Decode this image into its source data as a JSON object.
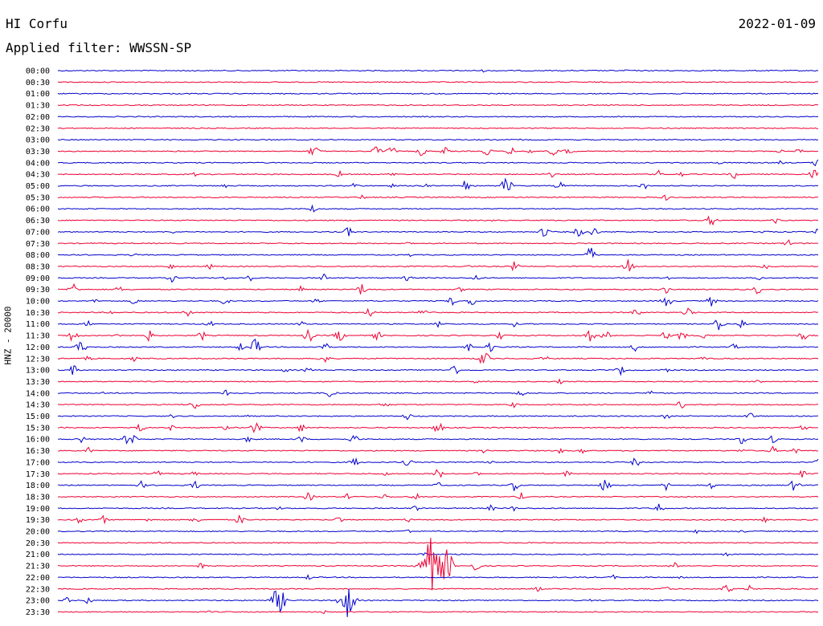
{
  "header": {
    "station": "HI Corfu",
    "date": "2022-01-09",
    "filter_label": "Applied filter: WWSSN-SP"
  },
  "chart_data": {
    "type": "line",
    "subtype": "helicorder",
    "title": "HI Corfu",
    "ylabel": "HNZ - 20000",
    "colors": {
      "even": "#0000cc",
      "odd": "#ee0033"
    },
    "rows": [
      {
        "time": "00:00",
        "events": [
          [
            0.17,
            0.2
          ],
          [
            0.36,
            0.15
          ],
          [
            0.56,
            0.2
          ],
          [
            0.75,
            0.25
          ]
        ]
      },
      {
        "time": "00:30",
        "events": [
          [
            0.36,
            0.1
          ]
        ]
      },
      {
        "time": "01:00",
        "events": [
          [
            0.5,
            0.1
          ]
        ]
      },
      {
        "time": "01:30",
        "events": []
      },
      {
        "time": "02:00",
        "events": []
      },
      {
        "time": "02:30",
        "events": []
      },
      {
        "time": "03:00",
        "events": [
          [
            0.28,
            0.15
          ],
          [
            0.61,
            0.15
          ]
        ]
      },
      {
        "time": "03:30",
        "events": [
          [
            0.337,
            0.9
          ],
          [
            0.419,
            0.8
          ],
          [
            0.438,
            0.8
          ],
          [
            0.478,
            0.7
          ],
          [
            0.509,
            0.6
          ],
          [
            0.565,
            0.7
          ],
          [
            0.596,
            0.6
          ],
          [
            0.62,
            0.5
          ],
          [
            0.65,
            0.8
          ],
          [
            0.67,
            0.7
          ],
          [
            0.95,
            0.3
          ],
          [
            0.975,
            0.4
          ]
        ]
      },
      {
        "time": "04:00",
        "events": [
          [
            0.87,
            0.3
          ],
          [
            0.95,
            0.3
          ],
          [
            1.0,
            0.8
          ]
        ]
      },
      {
        "time": "04:30",
        "events": [
          [
            0.18,
            0.3
          ],
          [
            0.37,
            0.5
          ],
          [
            0.44,
            0.4
          ],
          [
            0.65,
            0.4
          ],
          [
            0.79,
            0.6
          ],
          [
            0.82,
            0.4
          ],
          [
            0.89,
            0.7
          ],
          [
            0.995,
            0.9
          ]
        ]
      },
      {
        "time": "05:00",
        "events": [
          [
            0.22,
            0.4
          ],
          [
            0.39,
            0.5
          ],
          [
            0.44,
            0.3
          ],
          [
            0.485,
            0.7
          ],
          [
            0.536,
            0.8
          ],
          [
            0.59,
            1.2
          ],
          [
            0.66,
            0.7
          ],
          [
            0.77,
            0.6
          ]
        ]
      },
      {
        "time": "05:30",
        "events": [
          [
            0.4,
            0.4
          ],
          [
            0.8,
            0.5
          ]
        ]
      },
      {
        "time": "06:00",
        "events": [
          [
            0.337,
            0.7
          ]
        ]
      },
      {
        "time": "06:30",
        "events": [
          [
            0.57,
            0.2
          ],
          [
            0.86,
            0.9
          ],
          [
            0.945,
            0.5
          ]
        ]
      },
      {
        "time": "07:00",
        "events": [
          [
            0.15,
            0.3
          ],
          [
            0.383,
            0.8
          ],
          [
            0.64,
            0.9
          ],
          [
            0.685,
            0.8
          ],
          [
            0.705,
            0.8
          ],
          [
            0.93,
            0.6
          ],
          [
            1.0,
            0.6
          ]
        ]
      },
      {
        "time": "07:30",
        "events": [
          [
            0.46,
            0.3
          ],
          [
            0.96,
            0.6
          ]
        ]
      },
      {
        "time": "08:00",
        "events": [
          [
            0.1,
            0.3
          ],
          [
            0.46,
            0.4
          ],
          [
            0.7,
            1.2
          ]
        ]
      },
      {
        "time": "08:30",
        "events": [
          [
            0.15,
            0.5
          ],
          [
            0.2,
            0.4
          ],
          [
            0.54,
            0.3
          ],
          [
            0.6,
            0.7
          ],
          [
            0.75,
            1.0
          ],
          [
            0.93,
            0.6
          ]
        ]
      },
      {
        "time": "09:00",
        "events": [
          [
            0.15,
            0.6
          ],
          [
            0.22,
            0.3
          ],
          [
            0.25,
            0.7
          ],
          [
            0.35,
            0.6
          ],
          [
            0.46,
            0.5
          ],
          [
            0.55,
            0.5
          ],
          [
            0.8,
            0.5
          ],
          [
            0.92,
            0.5
          ]
        ]
      },
      {
        "time": "09:30",
        "events": [
          [
            0.02,
            1.0
          ],
          [
            0.08,
            0.5
          ],
          [
            0.32,
            0.5
          ],
          [
            0.4,
            0.9
          ],
          [
            0.53,
            0.4
          ],
          [
            0.8,
            0.6
          ],
          [
            0.92,
            0.7
          ]
        ]
      },
      {
        "time": "10:00",
        "events": [
          [
            0.05,
            0.3
          ],
          [
            0.1,
            0.6
          ],
          [
            0.22,
            0.6
          ],
          [
            0.34,
            0.5
          ],
          [
            0.52,
            0.8
          ],
          [
            0.545,
            0.8
          ],
          [
            0.8,
            1.0
          ],
          [
            0.86,
            0.8
          ]
        ]
      },
      {
        "time": "10:30",
        "events": [
          [
            0.07,
            0.3
          ],
          [
            0.17,
            0.8
          ],
          [
            0.41,
            0.7
          ],
          [
            0.48,
            0.8
          ],
          [
            0.76,
            0.7
          ],
          [
            0.83,
            0.9
          ]
        ]
      },
      {
        "time": "11:00",
        "events": [
          [
            0.04,
            0.5
          ],
          [
            0.2,
            0.5
          ],
          [
            0.32,
            0.5
          ],
          [
            0.5,
            0.6
          ],
          [
            0.6,
            0.4
          ],
          [
            0.87,
            1.0
          ],
          [
            0.9,
            0.8
          ]
        ]
      },
      {
        "time": "11:30",
        "events": [
          [
            0.02,
            1.0
          ],
          [
            0.08,
            0.7
          ],
          [
            0.12,
            0.8
          ],
          [
            0.19,
            0.7
          ],
          [
            0.33,
            1.0
          ],
          [
            0.37,
            1.0
          ],
          [
            0.42,
            0.7
          ],
          [
            0.58,
            0.9
          ],
          [
            0.7,
            0.9
          ],
          [
            0.72,
            0.8
          ],
          [
            0.8,
            0.7
          ],
          [
            0.82,
            0.8
          ],
          [
            0.85,
            0.6
          ],
          [
            0.98,
            0.7
          ]
        ]
      },
      {
        "time": "12:00",
        "events": [
          [
            0.03,
            1.0
          ],
          [
            0.24,
            0.6
          ],
          [
            0.26,
            1.2
          ],
          [
            0.35,
            0.8
          ],
          [
            0.54,
            0.6
          ],
          [
            0.57,
            0.8
          ],
          [
            0.76,
            0.7
          ],
          [
            0.89,
            0.5
          ]
        ]
      },
      {
        "time": "12:30",
        "events": [
          [
            0.04,
            0.4
          ],
          [
            0.1,
            0.4
          ],
          [
            0.35,
            0.9
          ],
          [
            0.56,
            1.2
          ],
          [
            0.64,
            0.5
          ],
          [
            0.85,
            0.4
          ]
        ]
      },
      {
        "time": "13:00",
        "events": [
          [
            0.02,
            0.8
          ],
          [
            0.3,
            0.4
          ],
          [
            0.33,
            0.5
          ],
          [
            0.52,
            1.0
          ],
          [
            0.74,
            0.7
          ],
          [
            0.8,
            0.4
          ]
        ]
      },
      {
        "time": "13:30",
        "events": [
          [
            0.55,
            0.3
          ],
          [
            0.66,
            0.4
          ],
          [
            0.92,
            0.4
          ]
        ]
      },
      {
        "time": "14:00",
        "events": [
          [
            0.06,
            0.3
          ],
          [
            0.22,
            0.5
          ],
          [
            0.36,
            0.9
          ],
          [
            0.61,
            0.6
          ],
          [
            0.78,
            0.5
          ]
        ]
      },
      {
        "time": "14:30",
        "events": [
          [
            0.18,
            0.8
          ],
          [
            0.43,
            0.6
          ],
          [
            0.6,
            0.4
          ],
          [
            0.82,
            0.6
          ]
        ]
      },
      {
        "time": "15:00",
        "events": [
          [
            0.15,
            0.3
          ],
          [
            0.25,
            0.3
          ],
          [
            0.46,
            0.6
          ],
          [
            0.8,
            0.5
          ],
          [
            0.91,
            0.6
          ]
        ]
      },
      {
        "time": "15:30",
        "events": [
          [
            0.11,
            0.8
          ],
          [
            0.15,
            0.5
          ],
          [
            0.22,
            0.4
          ],
          [
            0.26,
            0.9
          ],
          [
            0.32,
            0.7
          ],
          [
            0.5,
            0.9
          ],
          [
            0.98,
            0.5
          ]
        ]
      },
      {
        "time": "16:00",
        "events": [
          [
            0.03,
            0.6
          ],
          [
            0.09,
            0.7
          ],
          [
            0.1,
            0.6
          ],
          [
            0.25,
            0.5
          ],
          [
            0.32,
            0.6
          ],
          [
            0.39,
            0.8
          ],
          [
            0.9,
            0.9
          ],
          [
            0.94,
            0.6
          ]
        ]
      },
      {
        "time": "16:30",
        "events": [
          [
            0.04,
            0.5
          ],
          [
            0.56,
            0.4
          ],
          [
            0.66,
            0.5
          ],
          [
            0.69,
            0.5
          ],
          [
            0.9,
            0.4
          ],
          [
            0.94,
            0.6
          ],
          [
            0.97,
            0.6
          ]
        ]
      },
      {
        "time": "17:00",
        "events": [
          [
            0.39,
            0.8
          ],
          [
            0.46,
            0.6
          ],
          [
            0.57,
            0.4
          ],
          [
            0.76,
            0.7
          ],
          [
            1.0,
            0.5
          ]
        ]
      },
      {
        "time": "17:30",
        "events": [
          [
            0.13,
            0.6
          ],
          [
            0.18,
            0.4
          ],
          [
            0.43,
            0.4
          ],
          [
            0.5,
            0.8
          ],
          [
            0.55,
            0.4
          ],
          [
            0.67,
            0.5
          ],
          [
            0.98,
            0.6
          ]
        ]
      },
      {
        "time": "18:00",
        "events": [
          [
            0.11,
            0.6
          ],
          [
            0.18,
            0.7
          ],
          [
            0.5,
            0.5
          ],
          [
            0.6,
            0.8
          ],
          [
            0.72,
            1.0
          ],
          [
            0.8,
            0.7
          ],
          [
            0.86,
            0.6
          ],
          [
            0.97,
            1.0
          ]
        ]
      },
      {
        "time": "18:30",
        "events": [
          [
            0.33,
            0.7
          ],
          [
            0.38,
            0.5
          ],
          [
            0.43,
            0.5
          ],
          [
            0.47,
            0.6
          ],
          [
            0.61,
            0.6
          ]
        ]
      },
      {
        "time": "19:00",
        "events": [
          [
            0.29,
            0.3
          ],
          [
            0.47,
            0.5
          ],
          [
            0.57,
            0.5
          ],
          [
            0.6,
            0.4
          ],
          [
            0.79,
            0.9
          ]
        ]
      },
      {
        "time": "19:30",
        "events": [
          [
            0.03,
            0.7
          ],
          [
            0.06,
            0.6
          ],
          [
            0.12,
            0.4
          ],
          [
            0.18,
            0.7
          ],
          [
            0.24,
            0.8
          ],
          [
            0.37,
            0.6
          ],
          [
            0.46,
            0.4
          ],
          [
            0.93,
            0.4
          ]
        ]
      },
      {
        "time": "20:00",
        "events": [
          [
            0.46,
            0.4
          ],
          [
            0.84,
            0.3
          ],
          [
            0.9,
            0.3
          ]
        ]
      },
      {
        "time": "20:30",
        "events": []
      },
      {
        "time": "21:00",
        "events": [
          [
            0.48,
            0.5
          ],
          [
            0.88,
            0.4
          ]
        ]
      },
      {
        "time": "21:30",
        "events": [
          [
            0.19,
            0.6
          ],
          [
            0.49,
            4.0
          ],
          [
            0.51,
            2.5
          ],
          [
            0.55,
            0.8
          ],
          [
            0.81,
            0.6
          ]
        ]
      },
      {
        "time": "22:00",
        "events": [
          [
            0.33,
            0.4
          ],
          [
            0.73,
            0.4
          ],
          [
            0.82,
            0.3
          ]
        ]
      },
      {
        "time": "22:30",
        "events": [
          [
            0.63,
            0.6
          ],
          [
            0.8,
            0.5
          ],
          [
            0.88,
            0.8
          ],
          [
            0.91,
            0.5
          ]
        ]
      },
      {
        "time": "23:00",
        "events": [
          [
            0.01,
            0.6
          ],
          [
            0.04,
            0.6
          ],
          [
            0.29,
            2.0
          ],
          [
            0.38,
            2.5
          ],
          [
            0.7,
            0.3
          ]
        ]
      },
      {
        "time": "23:30",
        "events": [
          [
            0.2,
            0.2
          ],
          [
            0.35,
            0.3
          ]
        ]
      }
    ]
  }
}
